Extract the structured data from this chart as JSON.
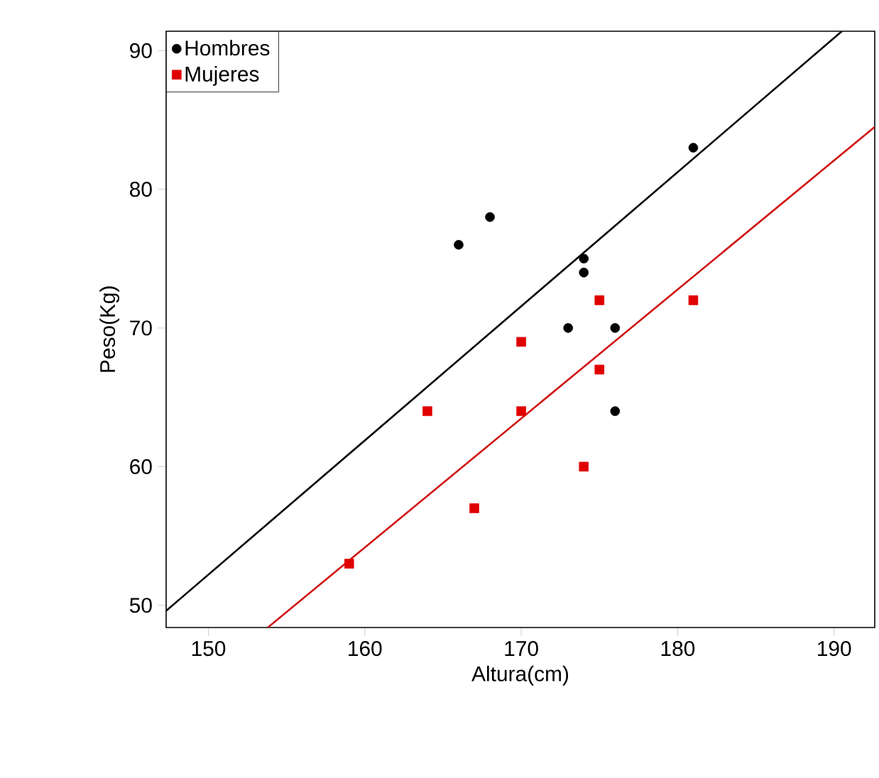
{
  "chart_data": {
    "type": "scatter",
    "xlabel": "Altura(cm)",
    "ylabel": "Peso(Kg)",
    "xlim": [
      147.3,
      192.6
    ],
    "ylim": [
      48.4,
      91.4
    ],
    "xticks": [
      150,
      160,
      170,
      180,
      190
    ],
    "yticks": [
      50,
      60,
      70,
      80,
      90
    ],
    "grid": false,
    "legend": "top left",
    "series": [
      {
        "name": "Hombres",
        "color": "#000000",
        "marker": "circle",
        "x": [
          166,
          168,
          174,
          174,
          173,
          176,
          176,
          181
        ],
        "values": [
          76,
          78,
          75,
          74,
          70,
          70,
          64,
          83
        ]
      },
      {
        "name": "Mujeres",
        "color": "#e00000",
        "marker": "square",
        "x": [
          159,
          164,
          167,
          170,
          170,
          174,
          175,
          175,
          181
        ],
        "values": [
          53,
          64,
          57,
          69,
          64,
          60,
          72,
          67,
          72
        ]
      },
      {
        "type": "line",
        "color": "#000000",
        "marker": "none",
        "x": [
          147.3,
          190.5
        ],
        "values": [
          49.6,
          91.4
        ]
      },
      {
        "type": "line",
        "color": "#d01010",
        "marker": "none",
        "x": [
          153.8,
          192.6
        ],
        "values": [
          48.4,
          84.5
        ]
      }
    ]
  }
}
